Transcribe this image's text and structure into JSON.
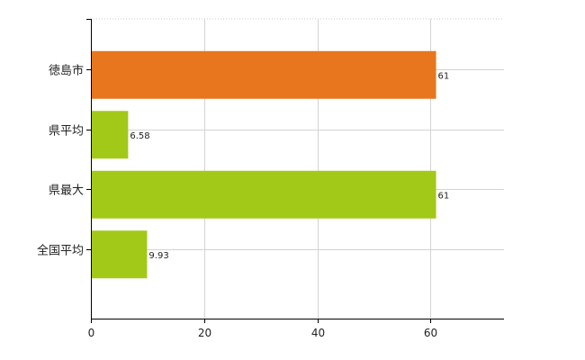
{
  "chart_data": {
    "type": "bar",
    "orientation": "horizontal",
    "categories": [
      "徳島市",
      "県平均",
      "県最大",
      "全国平均"
    ],
    "values": [
      61,
      6.58,
      61,
      9.93
    ],
    "value_labels": [
      "61",
      "6.58",
      "61",
      "9.93"
    ],
    "colors": [
      "#e8761e",
      "#a2c918",
      "#a2c918",
      "#a2c918"
    ],
    "xlim": [
      0,
      73
    ],
    "xticks": [
      0,
      20,
      40,
      60
    ],
    "xtick_labels": [
      "0",
      "20",
      "40",
      "60"
    ],
    "grid": true,
    "legend": "none"
  }
}
